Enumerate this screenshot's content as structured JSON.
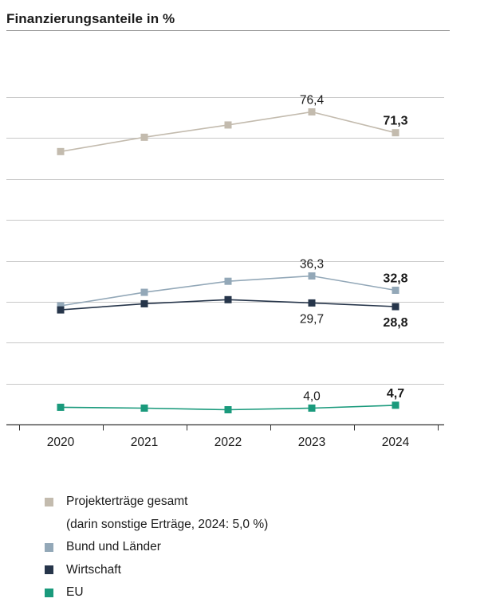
{
  "title": "Finanzierungsanteile in %",
  "colors": {
    "projekt": "#c3bbae",
    "bund": "#93a8b8",
    "wirtschaft": "#26354a",
    "eu": "#1a9a7c",
    "grid": "#c8c8c8",
    "axis": "#333333"
  },
  "legend": {
    "items": [
      {
        "label": "Projekterträge gesamt",
        "color_key": "projekt"
      },
      {
        "label": "Bund und Länder",
        "color_key": "bund"
      },
      {
        "label": "Wirtschaft",
        "color_key": "wirtschaft"
      },
      {
        "label": "EU",
        "color_key": "eu"
      }
    ],
    "note": "(darin sonstige Erträge, 2024: 5,0 %)"
  },
  "chart_data": {
    "type": "line",
    "title": "Finanzierungsanteile in %",
    "xlabel": "",
    "ylabel": "",
    "categories": [
      "2020",
      "2021",
      "2022",
      "2023",
      "2024"
    ],
    "ylim": [
      0,
      80
    ],
    "gridlines": [
      0,
      10,
      20,
      30,
      40,
      50,
      60,
      70,
      80
    ],
    "series": [
      {
        "name": "Projekterträge gesamt",
        "color_key": "projekt",
        "values": [
          66.7,
          70.2,
          73.2,
          76.4,
          71.3
        ],
        "labels": [
          {
            "index": 3,
            "text": "76,4",
            "bold": false,
            "position": "above"
          },
          {
            "index": 4,
            "text": "71,3",
            "bold": true,
            "position": "above"
          }
        ]
      },
      {
        "name": "Bund und Länder",
        "color_key": "bund",
        "values": [
          29.0,
          32.3,
          35.0,
          36.3,
          32.8
        ],
        "labels": [
          {
            "index": 3,
            "text": "36,3",
            "bold": false,
            "position": "above"
          },
          {
            "index": 4,
            "text": "32,8",
            "bold": true,
            "position": "above"
          }
        ]
      },
      {
        "name": "Wirtschaft",
        "color_key": "wirtschaft",
        "values": [
          28.0,
          29.5,
          30.5,
          29.7,
          28.8
        ],
        "labels": [
          {
            "index": 3,
            "text": "29,7",
            "bold": false,
            "position": "below"
          },
          {
            "index": 4,
            "text": "28,8",
            "bold": true,
            "position": "below"
          }
        ]
      },
      {
        "name": "EU",
        "color_key": "eu",
        "values": [
          4.2,
          4.0,
          3.6,
          4.0,
          4.7
        ],
        "labels": [
          {
            "index": 3,
            "text": "4,0",
            "bold": false,
            "position": "above"
          },
          {
            "index": 4,
            "text": "4,7",
            "bold": true,
            "position": "above"
          }
        ]
      }
    ]
  }
}
